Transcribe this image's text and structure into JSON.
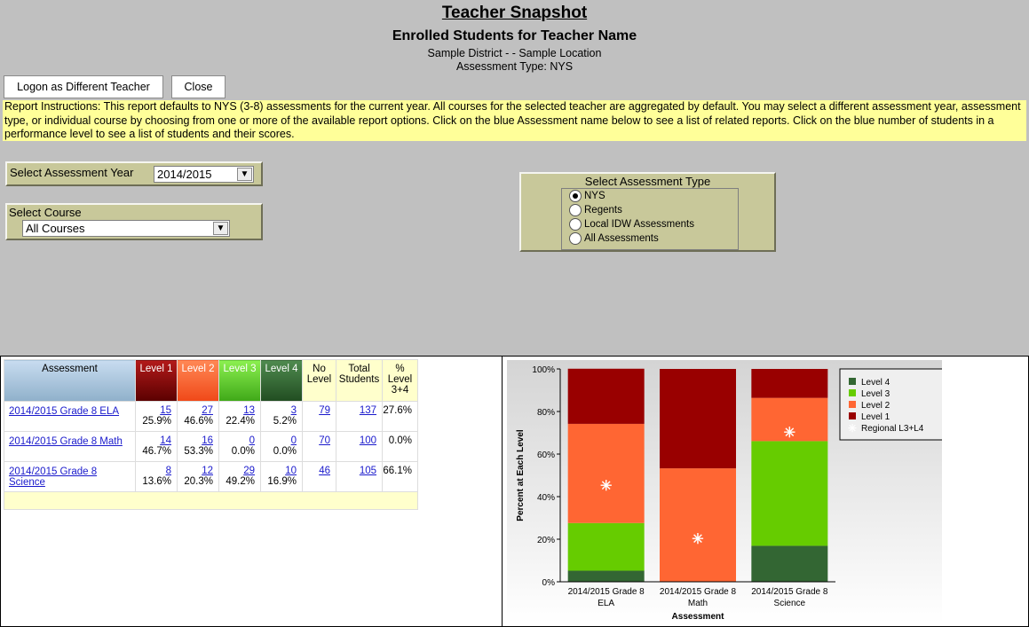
{
  "header": {
    "title": "Teacher Snapshot",
    "subtitle": "Enrolled Students for Teacher Name",
    "district_line": "Sample District  - - Sample Location",
    "assessment_type_line": "Assessment Type: NYS"
  },
  "buttons": {
    "logon_label": "Logon as Different Teacher",
    "close_label": "Close"
  },
  "instructions": "Report Instructions: This report defaults to NYS (3-8) assessments for the current year.  All courses for the selected teacher are aggregated by default.  You may select a different assessment year, assessment type, or individual course by choosing from one or more of the available report options.  Click on the blue Assessment name below to see a list of related reports.  Click on the blue number of students in a performance level to see a list of students and their scores.",
  "filters": {
    "year_label": "Select Assessment Year",
    "year_value": "2014/2015",
    "course_label": "Select Course",
    "course_value": "All Courses",
    "type_label": "Select Assessment Type",
    "type_options": [
      "NYS",
      "Regents",
      "Local IDW Assessments",
      "All Assessments"
    ],
    "type_selected": "NYS"
  },
  "table": {
    "headers": {
      "assessment": "Assessment",
      "level1": "Level 1",
      "level2": "Level 2",
      "level3": "Level 3",
      "level4": "Level 4",
      "no_level": "No Level",
      "total": "Total Students",
      "pct34": "% Level 3+4"
    },
    "rows": [
      {
        "assessment": "2014/2015 Grade 8 ELA",
        "l1": "15",
        "l1p": "25.9%",
        "l2": "27",
        "l2p": "46.6%",
        "l3": "13",
        "l3p": "22.4%",
        "l4": "3",
        "l4p": "5.2%",
        "nolevel": "79",
        "total": "137",
        "pct34": "27.6%"
      },
      {
        "assessment": "2014/2015 Grade 8 Math",
        "l1": "14",
        "l1p": "46.7%",
        "l2": "16",
        "l2p": "53.3%",
        "l3": "0",
        "l3p": "0.0%",
        "l4": "0",
        "l4p": "0.0%",
        "nolevel": "70",
        "total": "100",
        "pct34": "0.0%"
      },
      {
        "assessment": "2014/2015 Grade 8 Science",
        "l1": "8",
        "l1p": "13.6%",
        "l2": "12",
        "l2p": "20.3%",
        "l3": "29",
        "l3p": "49.2%",
        "l4": "10",
        "l4p": "16.9%",
        "nolevel": "46",
        "total": "105",
        "pct34": "66.1%"
      }
    ]
  },
  "chart_data": {
    "type": "bar",
    "stacked": true,
    "categories": [
      "2014/2015 Grade 8 ELA",
      "2014/2015 Grade 8 Math",
      "2014/2015 Grade 8 Science"
    ],
    "series": [
      {
        "name": "Level 4",
        "color": "#336633",
        "values": [
          5.2,
          0.0,
          16.9
        ]
      },
      {
        "name": "Level 3",
        "color": "#66cc00",
        "values": [
          22.4,
          0.0,
          49.2
        ]
      },
      {
        "name": "Level 2",
        "color": "#ff6633",
        "values": [
          46.6,
          53.3,
          20.3
        ]
      },
      {
        "name": "Level 1",
        "color": "#990000",
        "values": [
          25.9,
          46.7,
          13.6
        ]
      }
    ],
    "markers": {
      "name": "Regional L3+L4",
      "values": [
        45,
        20,
        70
      ]
    },
    "xlabel": "Assessment",
    "ylabel": "Percent at Each Level",
    "ylim": [
      0,
      100
    ],
    "yticks": [
      "0%",
      "20%",
      "40%",
      "60%",
      "80%",
      "100%"
    ],
    "legend": "top-right"
  }
}
